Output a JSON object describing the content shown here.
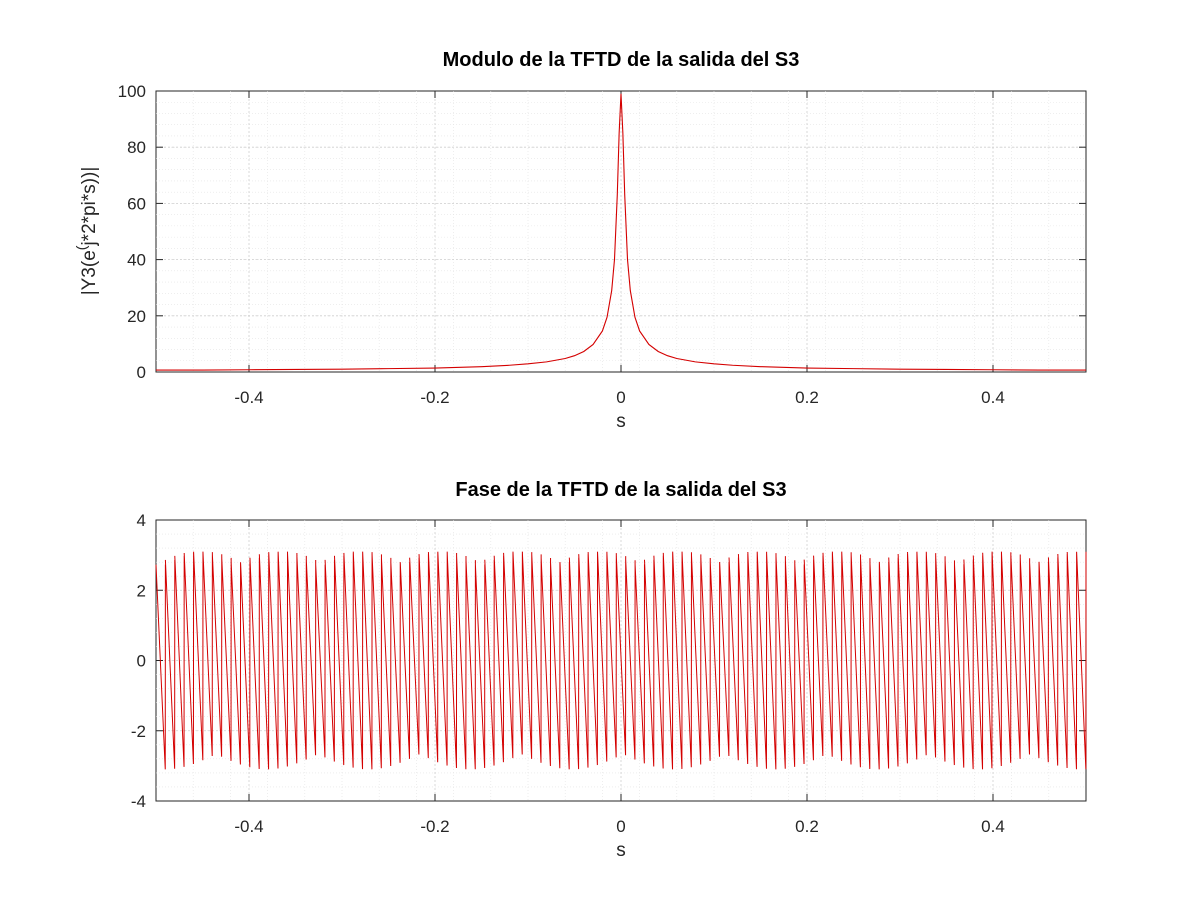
{
  "chart_data": [
    {
      "type": "line",
      "title": "Modulo de la TFTD de la salida del S3",
      "xlabel": "s",
      "ylabel": "|Y3(e",
      "ylabel_sup": "(",
      "ylabel_rest": "j*2*pi*s))|",
      "xlim": [
        -0.5,
        0.5
      ],
      "ylim": [
        0,
        100
      ],
      "xticks": [
        -0.4,
        -0.2,
        0,
        0.2,
        0.4
      ],
      "xtick_labels": [
        "-0.4",
        "-0.2",
        "0",
        "0.2",
        "0.4"
      ],
      "yticks": [
        0,
        20,
        40,
        60,
        80,
        100
      ],
      "ytick_labels": [
        "0",
        "20",
        "40",
        "60",
        "80",
        "100"
      ],
      "grid": true,
      "minor_grid": true,
      "series": [
        {
          "color": "#d40000",
          "x": [
            -0.5,
            -0.45,
            -0.4,
            -0.35,
            -0.3,
            -0.25,
            -0.2,
            -0.15,
            -0.12,
            -0.1,
            -0.08,
            -0.06,
            -0.05,
            -0.04,
            -0.03,
            -0.02,
            -0.015,
            -0.01,
            -0.007,
            -0.004,
            -0.002,
            0,
            0.002,
            0.004,
            0.007,
            0.01,
            0.015,
            0.02,
            0.03,
            0.04,
            0.05,
            0.06,
            0.08,
            0.1,
            0.12,
            0.15,
            0.2,
            0.25,
            0.3,
            0.35,
            0.4,
            0.45,
            0.5
          ],
          "y": [
            0.7,
            0.7,
            0.8,
            0.9,
            1.0,
            1.2,
            1.4,
            1.9,
            2.4,
            2.9,
            3.6,
            4.8,
            5.8,
            7.3,
            9.8,
            14.6,
            19.5,
            29,
            40,
            63,
            85,
            99,
            85,
            63,
            40,
            29,
            19.5,
            14.6,
            9.8,
            7.3,
            5.8,
            4.8,
            3.6,
            2.9,
            2.4,
            1.9,
            1.4,
            1.2,
            1.0,
            0.9,
            0.8,
            0.7,
            0.7
          ]
        }
      ]
    },
    {
      "type": "line",
      "title": "Fase de la TFTD de la salida del S3",
      "xlabel": "s",
      "ylabel": "",
      "xlim": [
        -0.5,
        0.5
      ],
      "ylim": [
        -4,
        4
      ],
      "xticks": [
        -0.4,
        -0.2,
        0,
        0.2,
        0.4
      ],
      "xtick_labels": [
        "-0.4",
        "-0.2",
        "0",
        "0.2",
        "0.4"
      ],
      "yticks": [
        -4,
        -2,
        0,
        2,
        4
      ],
      "ytick_labels": [
        "-4",
        "-2",
        "0",
        "2",
        "4"
      ],
      "grid": true,
      "minor_grid": true,
      "series": [
        {
          "color": "#d40000",
          "sawtooth_cycles": 99,
          "phase_range": [
            -3.1,
            3.1
          ]
        }
      ]
    }
  ]
}
